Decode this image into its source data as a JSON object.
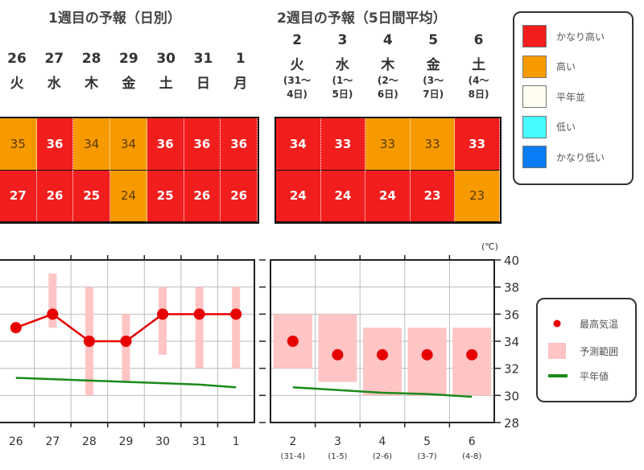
{
  "week1": {
    "title": "1週目の予報（日別）",
    "days": [
      {
        "date": "26",
        "weekday": "火"
      },
      {
        "date": "27",
        "weekday": "水"
      },
      {
        "date": "28",
        "weekday": "木"
      },
      {
        "date": "29",
        "weekday": "金"
      },
      {
        "date": "30",
        "weekday": "土"
      },
      {
        "date": "31",
        "weekday": "日"
      },
      {
        "date": "1",
        "weekday": "月"
      }
    ],
    "max_row": [
      {
        "v": "35",
        "c": "h"
      },
      {
        "v": "36",
        "c": "vh"
      },
      {
        "v": "34",
        "c": "h"
      },
      {
        "v": "34",
        "c": "h"
      },
      {
        "v": "36",
        "c": "vh"
      },
      {
        "v": "36",
        "c": "vh"
      },
      {
        "v": "36",
        "c": "vh"
      }
    ],
    "min_row": [
      {
        "v": "27",
        "c": "vh"
      },
      {
        "v": "26",
        "c": "vh"
      },
      {
        "v": "25",
        "c": "vh"
      },
      {
        "v": "24",
        "c": "h"
      },
      {
        "v": "25",
        "c": "vh"
      },
      {
        "v": "26",
        "c": "vh"
      },
      {
        "v": "26",
        "c": "vh"
      }
    ]
  },
  "week2": {
    "title": "2週目の予報（5日間平均）",
    "days": [
      {
        "date": "2",
        "weekday": "火",
        "range1": "(31～",
        "range2": "4日)"
      },
      {
        "date": "3",
        "weekday": "水",
        "range1": "(1～",
        "range2": "5日)"
      },
      {
        "date": "4",
        "weekday": "木",
        "range1": "(2～",
        "range2": "6日)"
      },
      {
        "date": "5",
        "weekday": "金",
        "range1": "(3～",
        "range2": "7日)"
      },
      {
        "date": "6",
        "weekday": "土",
        "range1": "(4～",
        "range2": "8日)"
      }
    ],
    "max_row": [
      {
        "v": "34",
        "c": "vh"
      },
      {
        "v": "33",
        "c": "vh"
      },
      {
        "v": "33",
        "c": "h"
      },
      {
        "v": "33",
        "c": "h"
      },
      {
        "v": "33",
        "c": "vh"
      }
    ],
    "min_row": [
      {
        "v": "24",
        "c": "vh"
      },
      {
        "v": "24",
        "c": "vh"
      },
      {
        "v": "24",
        "c": "vh"
      },
      {
        "v": "23",
        "c": "vh"
      },
      {
        "v": "23",
        "c": "h"
      }
    ]
  },
  "category_legend": [
    {
      "label": "かなり高い",
      "color": "#f21e1e"
    },
    {
      "label": "高い",
      "color": "#f79a00"
    },
    {
      "label": "平年並",
      "color": "#fffdf0"
    },
    {
      "label": "低い",
      "color": "#45fbfb"
    },
    {
      "label": "かなり低い",
      "color": "#0a7cf5"
    }
  ],
  "chart_data": {
    "type": "line",
    "unit_label": "(℃)",
    "ylim": [
      28,
      40
    ],
    "yticks": [
      "28",
      "30",
      "32",
      "34",
      "36",
      "38",
      "40"
    ],
    "grid": true,
    "legend_position": "right",
    "legend": {
      "max_temp": "最高気温",
      "range": "予測範囲",
      "normal": "平年値"
    },
    "colors": {
      "max_temp": "#e60000",
      "range": "#ffc4c4",
      "normal": "#1a8a1a"
    },
    "daily": {
      "categories": [
        "26",
        "27",
        "28",
        "29",
        "30",
        "31",
        "1"
      ],
      "max_temp": [
        35,
        36,
        34,
        34,
        36,
        36,
        36
      ],
      "range_low": [
        null,
        35,
        30,
        31,
        33,
        32,
        32
      ],
      "range_high": [
        null,
        39,
        38,
        36,
        38,
        38,
        38
      ],
      "normal": [
        31.3,
        31.2,
        31.1,
        31.0,
        30.9,
        30.8,
        30.6
      ]
    },
    "five_day": {
      "categories": [
        "2",
        "3",
        "4",
        "5",
        "6"
      ],
      "sublabels": [
        "(31-4)",
        "(1-5)",
        "(2-6)",
        "(3-7)",
        "(4-8)"
      ],
      "max_temp": [
        34,
        33,
        33,
        33,
        33
      ],
      "range_low": [
        32,
        31,
        30,
        30,
        30
      ],
      "range_high": [
        36,
        36,
        35,
        35,
        35
      ],
      "normal": [
        30.6,
        30.4,
        30.2,
        30.1,
        29.9
      ]
    }
  }
}
